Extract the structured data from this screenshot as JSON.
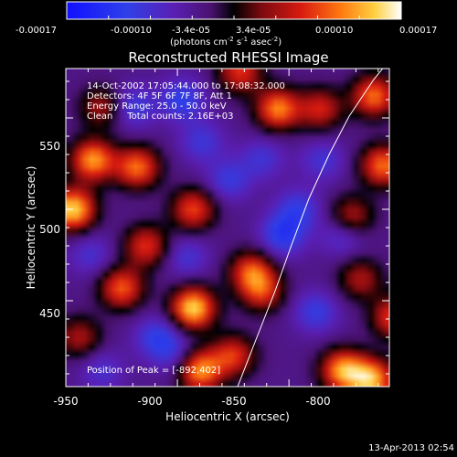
{
  "colorbar": {
    "ticks": [
      "-0.00017",
      "-0.00010",
      "-3.4e-05",
      "3.4e-05",
      "0.00010",
      "0.00017"
    ],
    "unit_main": "(photons cm",
    "unit_exp1": "-2",
    "unit_mid": " s",
    "unit_exp2": "-1",
    "unit_tail": " asec",
    "unit_exp3": "-2",
    "unit_close": ")"
  },
  "chart_data": {
    "type": "heatmap",
    "title": "Reconstructed RHESSI Image",
    "xlabel": "Heliocentric X (arcsec)",
    "ylabel": "Heliocentric Y (arcsec)",
    "xlim": [
      -950,
      -805
    ],
    "ylim": [
      403,
      577
    ],
    "x_ticks": [
      "-950",
      "-900",
      "-850",
      "-800"
    ],
    "y_ticks": [
      "450",
      "500",
      "550"
    ],
    "value_range": [
      -0.00017,
      0.00017
    ],
    "annotations": [
      "14-Oct-2002 17:05:44.000 to 17:08:32.000",
      "Detectors: 4F 5F 6F 7F 8F, Att 1",
      "Energy Range: 25.0 - 50.0 keV",
      "Clean     Total counts: 2.16E+03"
    ],
    "peak_label": "Position of Peak = [-892,402]",
    "peak": [
      -892,
      402
    ],
    "hot_spots": [
      {
        "x": -947,
        "y": 500,
        "v": 1.0
      },
      {
        "x": -893,
        "y": 446,
        "v": 1.0
      },
      {
        "x": -938,
        "y": 527,
        "v": 0.85
      },
      {
        "x": -918,
        "y": 523,
        "v": 0.75
      },
      {
        "x": -925,
        "y": 457,
        "v": 0.7
      },
      {
        "x": -914,
        "y": 480,
        "v": 0.6
      },
      {
        "x": -893,
        "y": 500,
        "v": 0.65
      },
      {
        "x": -867,
        "y": 466,
        "v": 0.65
      },
      {
        "x": -862,
        "y": 455,
        "v": 0.55
      },
      {
        "x": -890,
        "y": 412,
        "v": 0.85
      },
      {
        "x": -875,
        "y": 420,
        "v": 0.6
      },
      {
        "x": -855,
        "y": 555,
        "v": 0.8
      },
      {
        "x": -872,
        "y": 575,
        "v": 0.6
      },
      {
        "x": -836,
        "y": 555,
        "v": 0.55
      },
      {
        "x": -812,
        "y": 562,
        "v": 0.75
      },
      {
        "x": -808,
        "y": 524,
        "v": 0.75
      },
      {
        "x": -822,
        "y": 496,
        "v": 0.5
      },
      {
        "x": -818,
        "y": 462,
        "v": 0.45
      },
      {
        "x": -803,
        "y": 441,
        "v": 0.65
      },
      {
        "x": -826,
        "y": 412,
        "v": 0.85
      },
      {
        "x": -813,
        "y": 407,
        "v": 0.9
      },
      {
        "x": -934,
        "y": 556,
        "v": 0.45
      },
      {
        "x": -944,
        "y": 430,
        "v": 0.45
      }
    ],
    "cold_spots": [
      {
        "x": -920,
        "y": 556,
        "v": 0.7
      },
      {
        "x": -898,
        "y": 560,
        "v": 0.8
      },
      {
        "x": -889,
        "y": 537,
        "v": 0.6
      },
      {
        "x": -877,
        "y": 516,
        "v": 0.65
      },
      {
        "x": -846,
        "y": 500,
        "v": 0.7
      },
      {
        "x": -853,
        "y": 486,
        "v": 0.9
      },
      {
        "x": -826,
        "y": 486,
        "v": 0.6
      },
      {
        "x": -838,
        "y": 444,
        "v": 0.7
      },
      {
        "x": -896,
        "y": 474,
        "v": 0.55
      },
      {
        "x": -909,
        "y": 430,
        "v": 0.75
      },
      {
        "x": -901,
        "y": 420,
        "v": 0.5
      },
      {
        "x": -862,
        "y": 528,
        "v": 0.55
      },
      {
        "x": -835,
        "y": 527,
        "v": 0.55
      },
      {
        "x": -939,
        "y": 475,
        "v": 0.5
      },
      {
        "x": -934,
        "y": 412,
        "v": 0.5
      }
    ],
    "limb_points": [
      [
        -873,
        403
      ],
      [
        -865,
        428
      ],
      [
        -856,
        456
      ],
      [
        -849,
        480
      ],
      [
        -841,
        506
      ],
      [
        -832,
        530
      ],
      [
        -823,
        551
      ],
      [
        -812,
        571
      ],
      [
        -806,
        580
      ]
    ]
  },
  "footer": {
    "timestamp": "13-Apr-2013 02:54"
  }
}
